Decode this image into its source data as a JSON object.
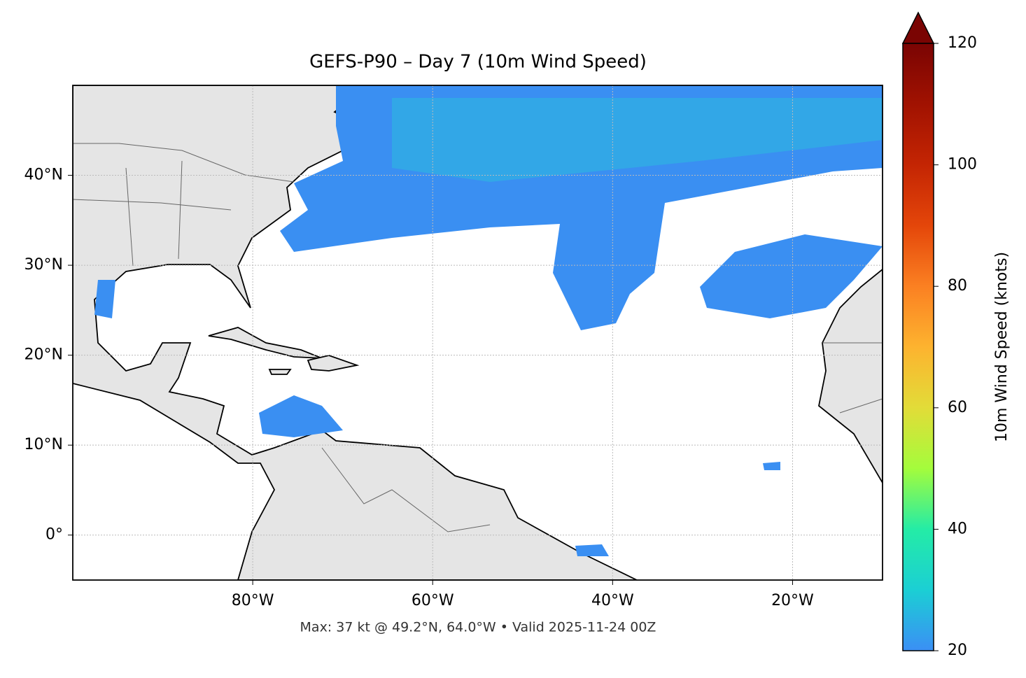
{
  "title": "GEFS-P90 – Day 7 (10m Wind Speed)",
  "note": "Max: 37 kt @ 49.2°N, 64.0°W • Valid 2025-11-24 00Z",
  "map": {
    "xlim": [
      -100,
      -10
    ],
    "ylim": [
      -5,
      50
    ],
    "xticks": [
      {
        "value": -80,
        "label": "80°W"
      },
      {
        "value": -60,
        "label": "60°W"
      },
      {
        "value": -40,
        "label": "40°W"
      },
      {
        "value": -20,
        "label": "20°W"
      }
    ],
    "yticks": [
      {
        "value": 0,
        "label": "0°"
      },
      {
        "value": 10,
        "label": "10°N"
      },
      {
        "value": 20,
        "label": "20°N"
      },
      {
        "value": 30,
        "label": "30°N"
      },
      {
        "value": 40,
        "label": "40°N"
      }
    ],
    "grid": true
  },
  "colorbar": {
    "label": "10m Wind Speed (knots)",
    "lim": [
      20,
      120
    ],
    "ticks": [
      20,
      40,
      60,
      80,
      100,
      120
    ],
    "colors": [
      "#3b8ff5",
      "#1bcfd4",
      "#24eca6",
      "#a4fc3c",
      "#e2dc38",
      "#fdb32f",
      "#fb8022",
      "#e4460a",
      "#c42503",
      "#a11201",
      "#7a0403"
    ]
  }
}
